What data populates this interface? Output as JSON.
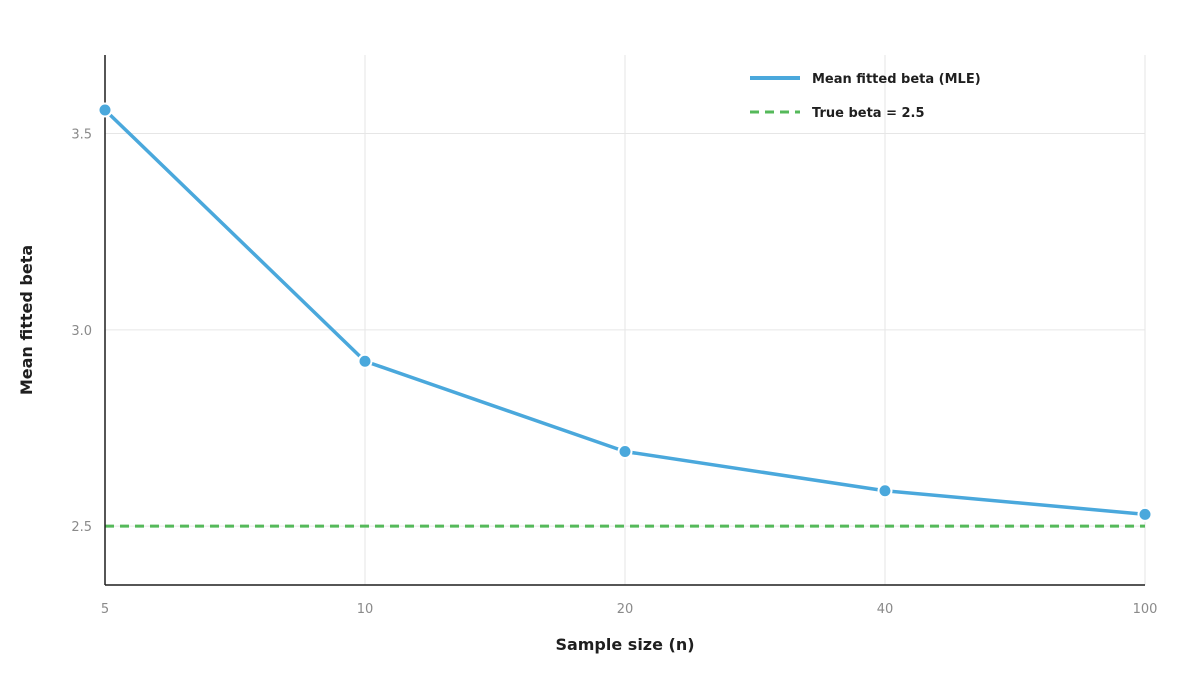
{
  "chart_data": {
    "type": "line",
    "title": "",
    "xlabel": "Sample size (n)",
    "ylabel": "Mean fitted beta",
    "x_categories": [
      "5",
      "10",
      "20",
      "40",
      "100"
    ],
    "ylim": [
      2.35,
      3.7
    ],
    "y_ticks": [
      2.5,
      3.0,
      3.5
    ],
    "y_tick_labels": [
      "2.5",
      "3.0",
      "3.5"
    ],
    "grid": true,
    "legend_position": "top-right",
    "series": [
      {
        "name": "Mean fitted beta (MLE)",
        "style": "solid-with-markers",
        "color": "#4aa8dc",
        "values": [
          3.56,
          2.92,
          2.69,
          2.59,
          2.53
        ]
      }
    ],
    "reference_lines": [
      {
        "name": "True beta = 2.5",
        "style": "dashed",
        "color": "#55b95a",
        "y": 2.5
      }
    ]
  }
}
